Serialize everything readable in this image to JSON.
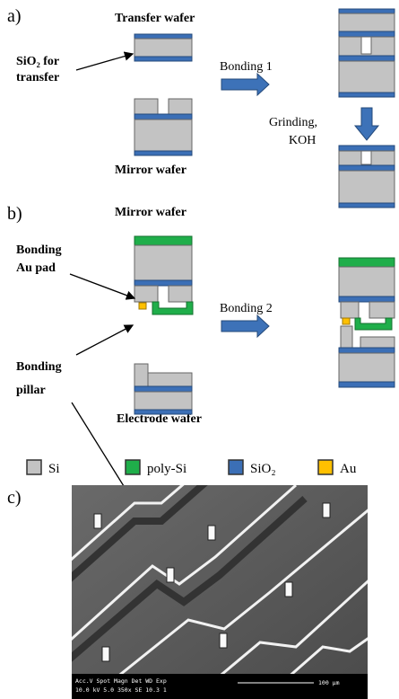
{
  "labels": {
    "a": "a)",
    "b": "b)",
    "c": "c)"
  },
  "panel_a": {
    "transfer_wafer": "Transfer wafer",
    "sio2_note": [
      "SiO₂ for",
      "transfer"
    ],
    "bonding": "Bonding 1",
    "grinding": [
      "Grinding,",
      "KOH"
    ],
    "mirror_wafer": "Mirror wafer"
  },
  "panel_b": {
    "mirror_wafer": "Mirror wafer",
    "au_pad": [
      "Bonding",
      "Au pad"
    ],
    "bonding": "Bonding 2",
    "pillar": [
      "Bonding",
      "pillar"
    ],
    "electrode_wafer": "Electrode wafer"
  },
  "legend": [
    {
      "label": "Si",
      "color": "#c3c3c3"
    },
    {
      "label": "poly-Si",
      "color": "#1fae4a"
    },
    {
      "label": "SiO₂",
      "color": "#3b6fb6"
    },
    {
      "label": "Au",
      "color": "#ffc000"
    }
  ],
  "sem": {
    "header": "Acc.V  Spot Magn   Det  WD  Exp",
    "values": "10.0 kV 5.0  350x   SE  10.3  1",
    "scale": "100 μm"
  }
}
